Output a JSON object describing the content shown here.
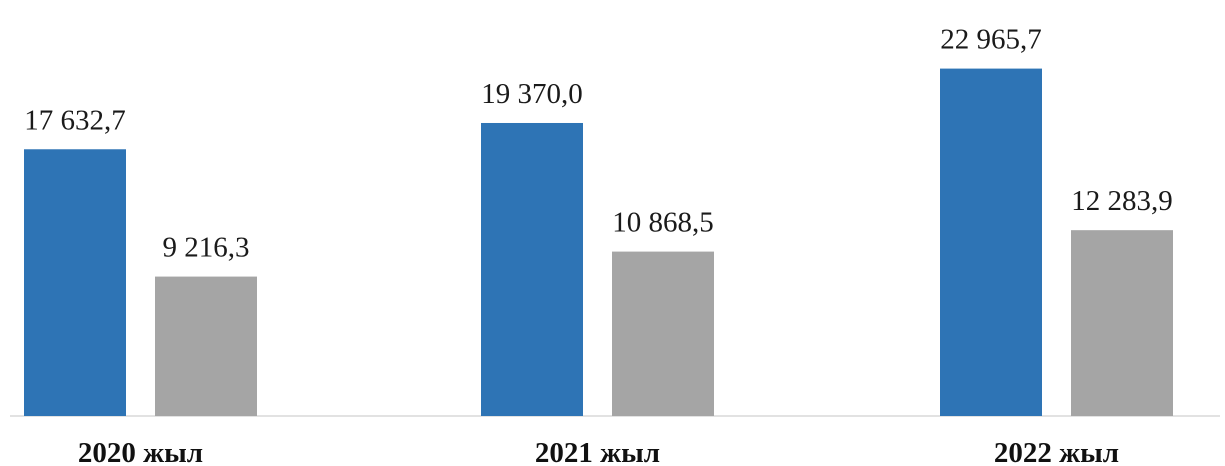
{
  "chart_data": {
    "type": "bar",
    "categories": [
      "2020 жыл",
      "2021 жыл",
      "2022 жыл"
    ],
    "series": [
      {
        "values": [
          17632.7,
          19370.0,
          22965.7
        ],
        "labels": [
          "17 632,7",
          "19 370,0",
          "22 965,7"
        ],
        "color": "#2e74b5"
      },
      {
        "values": [
          9216.3,
          10868.5,
          12283.9
        ],
        "labels": [
          "9 216,3",
          "10 868,5",
          "12 283,9"
        ],
        "color": "#a5a5a5"
      }
    ],
    "title": "",
    "xlabel": "",
    "ylabel": "",
    "ylim": [
      0,
      27500
    ],
    "grid": false,
    "legend": "none",
    "axis_color": "#d9d9d9"
  }
}
